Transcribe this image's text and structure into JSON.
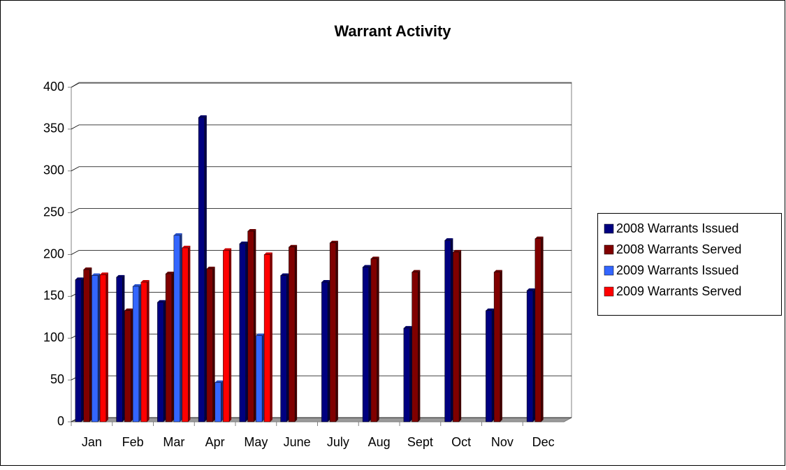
{
  "chart_data": {
    "type": "bar",
    "title": "Warrant Activity",
    "categories": [
      "Jan",
      "Feb",
      "Mar",
      "Apr",
      "May",
      "June",
      "July",
      "Aug",
      "Sept",
      "Oct",
      "Nov",
      "Dec"
    ],
    "series": [
      {
        "name": "2008 Warrants Issued",
        "color": "#000080",
        "values": [
          170,
          173,
          143,
          364,
          213,
          175,
          167,
          185,
          112,
          217,
          133,
          157
        ]
      },
      {
        "name": "2008 Warrants Served",
        "color": "#800000",
        "values": [
          182,
          133,
          177,
          183,
          228,
          209,
          214,
          195,
          179,
          203,
          179,
          219
        ]
      },
      {
        "name": "2009 Warrants Issued",
        "color": "#3366ff",
        "values": [
          175,
          162,
          223,
          47,
          103,
          null,
          null,
          null,
          null,
          null,
          null,
          null
        ]
      },
      {
        "name": "2009 Warrants Served",
        "color": "#ff0000",
        "values": [
          176,
          167,
          208,
          205,
          200,
          null,
          null,
          null,
          null,
          null,
          null,
          null
        ]
      }
    ],
    "ylim": [
      0,
      400
    ],
    "yticks": [
      0,
      50,
      100,
      150,
      200,
      250,
      300,
      350,
      400
    ],
    "grid": true,
    "legend": "right"
  }
}
